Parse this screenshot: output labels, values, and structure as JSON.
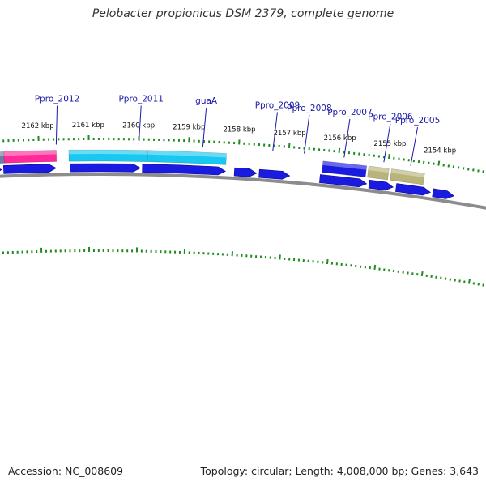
{
  "title": "Pelobacter propionicus DSM 2379, complete genome",
  "footer": {
    "accession": "Accession: NC_008609",
    "summary": "Topology: circular; Length: 4,008,000 bp; Genes: 3,643"
  },
  "colors": {
    "backbone": "#8c8c8c",
    "cds_reverse": "#1a1ae0",
    "tick": "#1f8a1f",
    "label": "#1a1aa8",
    "feature_pink": "#ff2a9a",
    "feature_cyan": "#19c8f0",
    "feature_olive": "#b8b47a",
    "feature_slate": "#6f7ba8"
  },
  "scale_labels": [
    {
      "text": "2162 kbp",
      "pos": 0.99
    },
    {
      "text": "2161 kbp",
      "pos": 1.99
    },
    {
      "text": "2160 kbp",
      "pos": 2.99
    },
    {
      "text": "2159 kbp",
      "pos": 3.99
    },
    {
      "text": "2158 kbp",
      "pos": 4.99
    },
    {
      "text": "2157 kbp",
      "pos": 5.99
    },
    {
      "text": "2156 kbp",
      "pos": 6.99
    },
    {
      "text": "2155 kbp",
      "pos": 7.99
    },
    {
      "text": "2154 kbp",
      "pos": 8.99
    }
  ],
  "gene_labels": [
    {
      "text": "Ppro_2012",
      "pos": 1.35
    },
    {
      "text": "Ppro_2011",
      "pos": 3.0
    },
    {
      "text": "guaA",
      "pos": 4.28
    },
    {
      "text": "Ppro_2009",
      "pos": 5.68
    },
    {
      "text": "Ppro_2008",
      "pos": 6.31
    },
    {
      "text": "Ppro_2007",
      "pos": 7.11
    },
    {
      "text": "Ppro_2006",
      "pos": 7.91
    },
    {
      "text": "Ppro_2005",
      "pos": 8.45
    }
  ],
  "upper_features": [
    {
      "start": 0.0,
      "end": 0.3,
      "fill": "feature_slate"
    },
    {
      "start": 0.3,
      "end": 1.35,
      "fill": "feature_pink"
    },
    {
      "start": 1.6,
      "end": 3.18,
      "fill": "feature_cyan"
    },
    {
      "start": 3.18,
      "end": 4.76,
      "fill": "feature_cyan"
    },
    {
      "start": 6.7,
      "end": 7.58,
      "fill": "cds_reverse"
    },
    {
      "start": 7.62,
      "end": 8.03,
      "fill": "feature_olive"
    },
    {
      "start": 8.08,
      "end": 8.75,
      "fill": "feature_olive"
    }
  ],
  "lower_cds": [
    {
      "start": 0.0,
      "end": 0.24
    },
    {
      "start": 0.28,
      "end": 1.34
    },
    {
      "start": 1.62,
      "end": 3.04
    },
    {
      "start": 3.08,
      "end": 4.76
    },
    {
      "start": 4.94,
      "end": 5.39
    },
    {
      "start": 5.44,
      "end": 6.06
    },
    {
      "start": 6.67,
      "end": 7.62
    },
    {
      "start": 7.67,
      "end": 8.16
    },
    {
      "start": 8.22,
      "end": 8.92
    },
    {
      "start": 8.97,
      "end": 9.4
    }
  ]
}
